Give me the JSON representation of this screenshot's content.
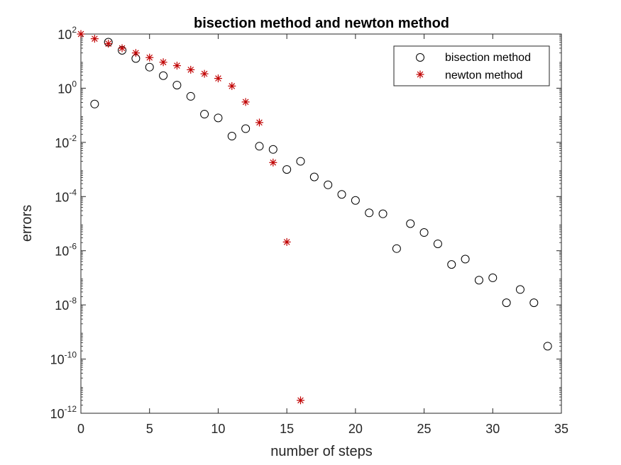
{
  "chart_data": {
    "type": "scatter",
    "title": "bisection method and newton method",
    "xlabel": "number of steps",
    "ylabel": "errors",
    "xlim": [
      0,
      35
    ],
    "ylim": [
      1e-12,
      100
    ],
    "y_scale": "log",
    "grid": false,
    "legend_position": "top-right",
    "x_ticks": [
      "0",
      "5",
      "10",
      "15",
      "20",
      "25",
      "30",
      "35"
    ],
    "y_ticks": [
      {
        "base": "10",
        "exp": "-12",
        "value": 1e-12
      },
      {
        "base": "10",
        "exp": "-10",
        "value": 1e-10
      },
      {
        "base": "10",
        "exp": "-8",
        "value": 1e-08
      },
      {
        "base": "10",
        "exp": "-6",
        "value": 1e-06
      },
      {
        "base": "10",
        "exp": "-4",
        "value": 0.0001
      },
      {
        "base": "10",
        "exp": "-2",
        "value": 0.01
      },
      {
        "base": "10",
        "exp": "0",
        "value": 1
      },
      {
        "base": "10",
        "exp": "2",
        "value": 100
      }
    ],
    "series": [
      {
        "name": "bisection method",
        "marker": "circle",
        "color": "#000000",
        "x": [
          1,
          2,
          3,
          4,
          5,
          6,
          7,
          8,
          9,
          10,
          11,
          12,
          13,
          14,
          15,
          16,
          17,
          18,
          19,
          20,
          21,
          22,
          23,
          24,
          25,
          26,
          27,
          28,
          29,
          30,
          31,
          32,
          33,
          34
        ],
        "y": [
          0.26,
          50,
          25,
          12.5,
          6,
          2.9,
          1.3,
          0.5,
          0.11,
          0.08,
          0.017,
          0.032,
          0.0072,
          0.0055,
          0.001,
          0.002,
          0.00053,
          0.00027,
          0.00012,
          7.2e-05,
          2.5e-05,
          2.3e-05,
          1.2e-06,
          1e-05,
          4.7e-06,
          1.8e-06,
          3.1e-07,
          4.9e-07,
          8.2e-08,
          1e-07,
          1.2e-08,
          3.7e-08,
          1.2e-08,
          3e-10
        ]
      },
      {
        "name": "newton method",
        "marker": "asterisk",
        "color": "#c00000",
        "x": [
          0,
          1,
          2,
          3,
          4,
          5,
          6,
          7,
          8,
          9,
          10,
          11,
          12,
          13,
          14,
          15,
          16
        ],
        "y": [
          100,
          67,
          44,
          30,
          20,
          13.5,
          9.1,
          6.8,
          4.8,
          3.4,
          2.3,
          1.2,
          0.31,
          0.054,
          0.0018,
          2.1e-06,
          3e-12
        ]
      }
    ]
  }
}
